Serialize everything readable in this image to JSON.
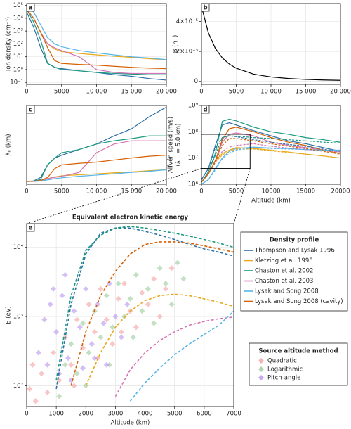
{
  "chart_data": [
    {
      "type": "line",
      "label": "a",
      "ylabel": "Ion density (cm⁻³)",
      "ylog": true,
      "grid": true,
      "legend_title": "Density profile",
      "x": [
        0,
        1000,
        2000,
        3000,
        4000,
        5000,
        7500,
        10000,
        12500,
        15000,
        17500,
        20000
      ],
      "xlim": [
        0,
        20000
      ],
      "xticks": [
        0,
        5000,
        {
          "value": 10000,
          "label": "10 000"
        },
        {
          "value": 15000,
          "label": "15 000"
        },
        {
          "value": 20000,
          "label": "20 000"
        }
      ],
      "ylim": [
        0.07,
        140000
      ],
      "yticks": [
        {
          "value": 0.1,
          "label": "10⁻¹"
        },
        {
          "value": 1,
          "label": "10⁰"
        },
        {
          "value": 10,
          "label": "10¹"
        },
        {
          "value": 100,
          "label": "10²"
        },
        {
          "value": 1000,
          "label": "10³"
        },
        {
          "value": 10000,
          "label": "10⁴"
        },
        {
          "value": 100000,
          "label": "10⁵"
        }
      ],
      "series": [
        {
          "name": "Thompson and Lysak 1996",
          "color": "#2c6ea6",
          "values": [
            30000,
            2000,
            50,
            3,
            1.5,
            1.2,
            0.8,
            0.6,
            0.4,
            0.3,
            0.2,
            0.15
          ]
        },
        {
          "name": "Kletzing et al. 1998",
          "color": "#e7a91a",
          "values": [
            50000,
            10000,
            800,
            100,
            40,
            25,
            18,
            14,
            11,
            9,
            7,
            6
          ]
        },
        {
          "name": "Chaston et al. 2002",
          "color": "#1a9a80",
          "values": [
            50000,
            5000,
            200,
            3,
            1.5,
            1,
            0.8,
            0.6,
            0.5,
            0.45,
            0.4,
            0.4
          ]
        },
        {
          "name": "Chaston et al. 2003",
          "color": "#d373b5",
          "values": [
            50000,
            10000,
            800,
            100,
            50,
            30,
            10,
            1,
            0.6,
            0.5,
            0.5,
            0.5
          ]
        },
        {
          "name": "Lysak and Song 2008",
          "color": "#56b4e9",
          "values": [
            100000,
            30000,
            3000,
            300,
            100,
            60,
            30,
            20,
            14,
            10,
            8,
            6
          ]
        },
        {
          "name": "Lysak and Song 2008 (cavity)",
          "color": "#d55e00",
          "values": [
            50000,
            10000,
            800,
            50,
            5,
            3,
            2.5,
            2.2,
            1.8,
            1.5,
            1.3,
            1.2
          ]
        }
      ]
    },
    {
      "type": "line",
      "label": "b",
      "ylabel": "B (nT)",
      "grid": true,
      "x": [
        0,
        1000,
        2000,
        3000,
        4000,
        5000,
        7500,
        10000,
        12500,
        15000,
        17500,
        20000
      ],
      "xlim": [
        0,
        20000
      ],
      "xticks": [
        0,
        5000,
        {
          "value": 10000,
          "label": "10 000"
        },
        {
          "value": 15000,
          "label": "15 000"
        },
        {
          "value": 20000,
          "label": "20 000"
        }
      ],
      "ylim": [
        -2e-06,
        5.2e-05
      ],
      "yticks": [
        0,
        {
          "value": 2e-05,
          "label": "2×10⁻⁵"
        },
        {
          "value": 4e-05,
          "label": "4×10⁻⁵"
        }
      ],
      "series": [
        {
          "color": "#000000",
          "values": [
            5e-05,
            3.23e-05,
            2.2e-05,
            1.57e-05,
            1.16e-05,
            8.8e-06,
            4.85e-06,
            2.95e-06,
            1.92e-06,
            1.32e-06,
            9.5e-07,
            7e-07
          ]
        }
      ]
    },
    {
      "type": "line",
      "label": "c",
      "ylabel": "λₑ (km)",
      "grid": true,
      "x": [
        0,
        1000,
        2000,
        3000,
        4000,
        5000,
        7500,
        10000,
        12500,
        15000,
        17500,
        20000
      ],
      "xlim": [
        0,
        20000
      ],
      "xticks": [
        0,
        5000,
        {
          "value": 10000,
          "label": "10 000"
        },
        {
          "value": 15000,
          "label": "15 000"
        },
        {
          "value": 20000,
          "label": "20 000"
        }
      ],
      "ylim": [
        -0.5,
        14
      ],
      "series": [
        {
          "color": "#2c6ea6",
          "values": [
            0.03,
            0.12,
            0.75,
            3.07,
            4.3,
            4.85,
            5.9,
            6.9,
            8.4,
            9.7,
            11.9,
            13.7
          ]
        },
        {
          "color": "#e7a91a",
          "values": [
            0.02,
            0.05,
            0.19,
            0.53,
            0.84,
            1.06,
            1.25,
            1.42,
            1.6,
            1.77,
            2.0,
            2.17
          ]
        },
        {
          "color": "#1a9a80",
          "values": [
            0.02,
            0.08,
            0.38,
            3.07,
            4.3,
            5.3,
            5.9,
            6.9,
            7.5,
            7.9,
            8.4,
            8.4
          ]
        },
        {
          "color": "#d373b5",
          "values": [
            0.02,
            0.05,
            0.19,
            0.53,
            0.75,
            0.97,
            1.68,
            5.31,
            6.9,
            7.5,
            7.5,
            7.5
          ]
        },
        {
          "color": "#56b4e9",
          "values": [
            0.02,
            0.03,
            0.1,
            0.31,
            0.53,
            0.69,
            0.97,
            1.19,
            1.42,
            1.68,
            1.88,
            2.17
          ]
        },
        {
          "color": "#d55e00",
          "values": [
            0.02,
            0.05,
            0.19,
            0.75,
            2.37,
            3.07,
            3.35,
            3.58,
            3.96,
            4.34,
            4.66,
            4.85
          ]
        }
      ]
    },
    {
      "type": "line",
      "label": "d",
      "ylabel": "Alfvén speed (m/s)",
      "ylabel2": "(λ⊥ = 5.0 km)",
      "xlabel": "Altitude (km)",
      "ylog": true,
      "grid": true,
      "x": [
        0,
        1000,
        2000,
        3000,
        4000,
        5000,
        7500,
        10000,
        12500,
        15000,
        17500,
        20000
      ],
      "xlim": [
        0,
        20000
      ],
      "xticks": [
        0,
        5000,
        {
          "value": 10000,
          "label": "10000"
        },
        {
          "value": 15000,
          "label": "15000"
        },
        {
          "value": 20000,
          "label": "20000"
        }
      ],
      "ylim": [
        1000000,
        1000000000
      ],
      "yticks": [
        {
          "value": 1000000,
          "label": "10⁶"
        },
        {
          "value": 10000000,
          "label": "10⁷"
        },
        {
          "value": 100000000,
          "label": "10⁸"
        },
        {
          "value": 1000000000,
          "label": "10⁹"
        }
      ],
      "inset": {
        "xlim": [
          0,
          7000
        ],
        "ylim": [
          4000000,
          80000000
        ]
      },
      "series": [
        {
          "color": "#2c6ea6",
          "values": [
            1500000,
            4000000,
            30000000,
            180000000,
            220000000,
            180000000,
            110000000,
            70000000,
            45000000,
            35000000,
            25000000,
            18000000
          ]
        },
        {
          "color": "#e7a91a",
          "values": [
            1200000,
            2500000,
            8000000,
            15000000,
            20000000,
            25000000,
            23000000,
            20000000,
            17000000,
            14000000,
            12000000,
            10000000
          ]
        },
        {
          "color": "#1a9a80",
          "values": [
            1200000,
            3000000,
            15000000,
            250000000,
            300000000,
            260000000,
            150000000,
            100000000,
            80000000,
            60000000,
            50000000,
            40000000
          ]
        },
        {
          "color": "#d373b5",
          "values": [
            1200000,
            2500000,
            8000000,
            40000000,
            80000000,
            90000000,
            70000000,
            40000000,
            30000000,
            25000000,
            20000000,
            18000000
          ]
        },
        {
          "color": "#56b4e9",
          "values": [
            1000000,
            1500000,
            4000000,
            10000000,
            18000000,
            23000000,
            26000000,
            24000000,
            23000000,
            21000000,
            20000000,
            20000000
          ]
        },
        {
          "color": "#d55e00",
          "values": [
            1200000,
            2500000,
            8000000,
            50000000,
            130000000,
            150000000,
            100000000,
            60000000,
            40000000,
            30000000,
            20000000,
            15000000
          ]
        },
        {
          "color": "#2c6ea6",
          "dashed": true,
          "values": [
            1500000,
            4000000,
            25000000,
            60000000,
            70000000,
            65000000,
            50000000,
            40000000,
            33000000,
            28000000,
            22000000,
            17000000
          ]
        },
        {
          "color": "#e7a91a",
          "dashed": true,
          "values": [
            1200000,
            2500000,
            7000000,
            13000000,
            18000000,
            22000000,
            22000000,
            19000000,
            16000000,
            14000000,
            12000000,
            10000000
          ]
        },
        {
          "color": "#1a9a80",
          "dashed": true,
          "values": [
            1200000,
            3000000,
            13000000,
            60000000,
            70000000,
            68000000,
            60000000,
            55000000,
            50000000,
            45000000,
            40000000,
            37000000
          ]
        },
        {
          "color": "#d373b5",
          "dashed": true,
          "values": [
            1200000,
            2500000,
            7000000,
            18000000,
            26000000,
            30000000,
            35000000,
            28000000,
            24000000,
            21000000,
            19000000,
            17000000
          ]
        },
        {
          "color": "#56b4e9",
          "dashed": true,
          "values": [
            1000000,
            1500000,
            3500000,
            9000000,
            15000000,
            20000000,
            25000000,
            23000000,
            22000000,
            21000000,
            20000000,
            20000000
          ]
        },
        {
          "color": "#d55e00",
          "dashed": true,
          "values": [
            1200000,
            2500000,
            7000000,
            30000000,
            55000000,
            55000000,
            45000000,
            35000000,
            28000000,
            23000000,
            18000000,
            14000000
          ]
        }
      ]
    },
    {
      "type": "scatter",
      "label": "e",
      "title": "Equivalent electron kinetic energy",
      "ylabel": "E (eV)",
      "xlabel": "Altitude (km)",
      "ylog": true,
      "grid": true,
      "legend_title": "Source altitude method",
      "xlim": [
        0,
        7000
      ],
      "xticks": [
        0,
        1000,
        2000,
        3000,
        4000,
        5000,
        6000,
        7000
      ],
      "ylim": [
        50,
        22000
      ],
      "yticks": [
        {
          "value": 100,
          "label": "10²"
        },
        {
          "value": 1000,
          "label": "10³"
        },
        {
          "value": 10000,
          "label": "10⁴"
        }
      ],
      "x": [
        0,
        500,
        1000,
        1500,
        2000,
        2500,
        3000,
        3500,
        4000,
        4500,
        5000,
        5500,
        6000,
        6500,
        7000
      ],
      "curves": [
        {
          "color": "#2c6ea6",
          "values": [
            null,
            null,
            90,
            1500,
            8000,
            16000,
            19000,
            19000,
            17000,
            15000,
            13000,
            11000,
            9500,
            8500,
            7500
          ]
        },
        {
          "color": "#1a9a80",
          "values": [
            null,
            null,
            120,
            2000,
            9000,
            15000,
            19000,
            20000,
            19000,
            17500,
            16000,
            14500,
            13000,
            11500,
            10000
          ]
        },
        {
          "color": "#d55e00",
          "values": [
            null,
            null,
            null,
            100,
            600,
            2000,
            4500,
            8000,
            11000,
            12000,
            12000,
            11500,
            10500,
            9500,
            8500
          ]
        },
        {
          "color": "#e7a91a",
          "values": [
            null,
            null,
            null,
            null,
            100,
            300,
            700,
            1200,
            1700,
            2000,
            2100,
            2000,
            1800,
            1600,
            1400
          ]
        },
        {
          "color": "#d373b5",
          "values": [
            null,
            null,
            null,
            null,
            null,
            null,
            70,
            170,
            300,
            450,
            600,
            750,
            850,
            930,
            980
          ]
        },
        {
          "color": "#56b4e9",
          "values": [
            null,
            null,
            null,
            null,
            null,
            null,
            null,
            60,
            110,
            180,
            280,
            400,
            550,
            750,
            1200
          ]
        }
      ],
      "series": [
        {
          "name": "Quadratic",
          "color": "#f4a0a0",
          "x": [
            100,
            300,
            500,
            700,
            900,
            1100,
            1300,
            1500,
            1700,
            1900,
            2100,
            2300,
            2500,
            2700,
            2900,
            3100,
            3300,
            3500,
            3700,
            3900,
            4100,
            4300,
            4500,
            4700,
            4900,
            200,
            1600,
            2400,
            3200
          ],
          "values": [
            90,
            60,
            150,
            80,
            300,
            120,
            500,
            200,
            900,
            350,
            1500,
            600,
            2500,
            900,
            400,
            1800,
            3000,
            1200,
            700,
            2200,
            1500,
            3500,
            1000,
            2500,
            5000,
            200,
            100,
            250,
            600
          ]
        },
        {
          "name": "Logarithmic",
          "color": "#9ccc9c",
          "x": [
            1100,
            1300,
            1500,
            1700,
            1900,
            2100,
            2300,
            2500,
            2700,
            2900,
            3100,
            3300,
            3500,
            3700,
            3900,
            4100,
            4300,
            4500,
            4700,
            4900,
            5100,
            5300,
            2000,
            2800,
            3600
          ],
          "values": [
            70,
            200,
            400,
            150,
            800,
            300,
            1200,
            500,
            2000,
            700,
            3000,
            1000,
            1800,
            4000,
            1200,
            2500,
            800,
            5000,
            3000,
            1500,
            6000,
            3500,
            100,
            200,
            500
          ]
        },
        {
          "name": "Pitch-angle",
          "color": "#b894ee",
          "x": [
            400,
            600,
            800,
            1000,
            1200,
            1400,
            1600,
            1800,
            2000,
            2200,
            2400,
            2600,
            2800,
            3000,
            3200,
            1100,
            1500,
            1900,
            2300,
            900,
            700,
            1300,
            2700,
            3400
          ],
          "values": [
            300,
            900,
            1500,
            600,
            2000,
            250,
            1200,
            700,
            2500,
            400,
            1500,
            800,
            3000,
            1000,
            500,
            150,
            120,
            180,
            250,
            2500,
            200,
            4000,
            200,
            1500
          ]
        }
      ]
    }
  ]
}
